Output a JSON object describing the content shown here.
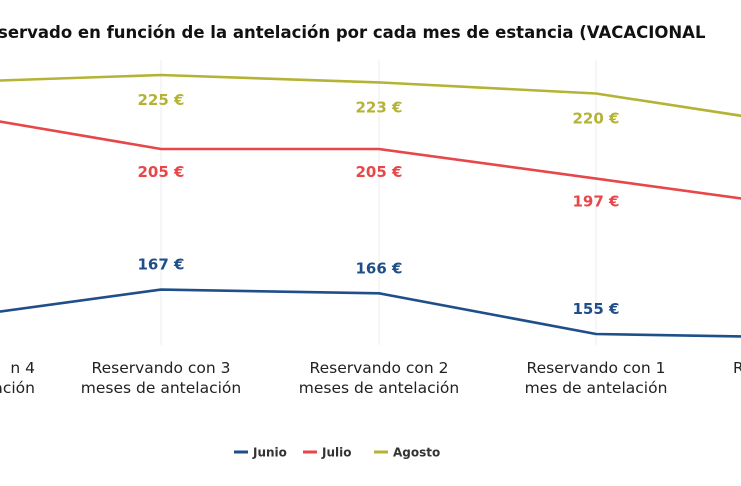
{
  "chart_data": {
    "type": "line",
    "title": "servado en función de la antelación por cada mes de estancia (VACACIONAL",
    "categories": [
      [
        "n 4",
        "ación"
      ],
      [
        "Reservando con 3",
        "meses de antelación"
      ],
      [
        "Reservando con 2",
        "meses de antelación"
      ],
      [
        "Reservando con 1",
        "mes de antelación"
      ],
      [
        "R",
        ""
      ]
    ],
    "unit": "€",
    "series": [
      {
        "name": "Junio",
        "color": "#1f4e89",
        "values": [
          159,
          167,
          166,
          155,
          154
        ]
      },
      {
        "name": "Julio",
        "color": "#e8474a",
        "values": [
          215,
          205,
          205,
          197,
          189
        ]
      },
      {
        "name": "Agosto",
        "color": "#b5b335",
        "values": [
          223,
          225,
          223,
          220,
          211
        ]
      }
    ],
    "data_labels": {
      "Junio": [
        "",
        "167 €",
        "166 €",
        "155 €",
        ""
      ],
      "Julio": [
        "",
        "205 €",
        "205 €",
        "197 €",
        ""
      ],
      "Agosto": [
        "",
        "225 €",
        "223 €",
        "220 €",
        ""
      ]
    },
    "legend": {
      "position": "bottom",
      "entries": [
        "Junio",
        "Julio",
        "Agosto"
      ]
    },
    "grid": "vertical category lines"
  }
}
